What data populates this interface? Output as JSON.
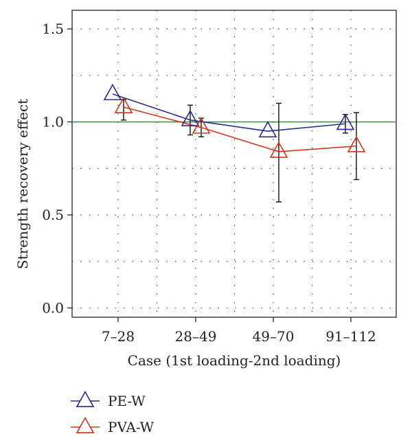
{
  "chart_data": {
    "type": "line",
    "title": "",
    "xlabel": "Case (1st loading-2nd loading)",
    "ylabel": "Strength recovery effect",
    "categories": [
      "7–28",
      "28–49",
      "49–70",
      "91–112"
    ],
    "ylim": [
      -0.05,
      1.6
    ],
    "yticks": [
      0.0,
      0.5,
      1.0,
      1.5
    ],
    "ytick_labels": [
      "0.0",
      "0.5",
      "1.0",
      "1.5"
    ],
    "grid": true,
    "reference_line": {
      "y": 1.0,
      "color": "#3a9a4a"
    },
    "legend_position": "bottom-left",
    "series": [
      {
        "name": "PE-W",
        "color": "#2a2a8a",
        "marker": "triangle-open",
        "values": [
          1.15,
          1.01,
          0.95,
          0.99
        ],
        "err_low": [
          1.15,
          0.93,
          0.95,
          0.94
        ],
        "err_high": [
          1.15,
          1.09,
          0.95,
          1.04
        ]
      },
      {
        "name": "PVA-W",
        "color": "#d2351e",
        "marker": "triangle-open",
        "values": [
          1.08,
          0.97,
          0.84,
          0.87
        ],
        "err_low": [
          1.01,
          0.92,
          0.57,
          0.69
        ],
        "err_high": [
          1.12,
          1.02,
          1.1,
          1.05
        ]
      }
    ]
  }
}
